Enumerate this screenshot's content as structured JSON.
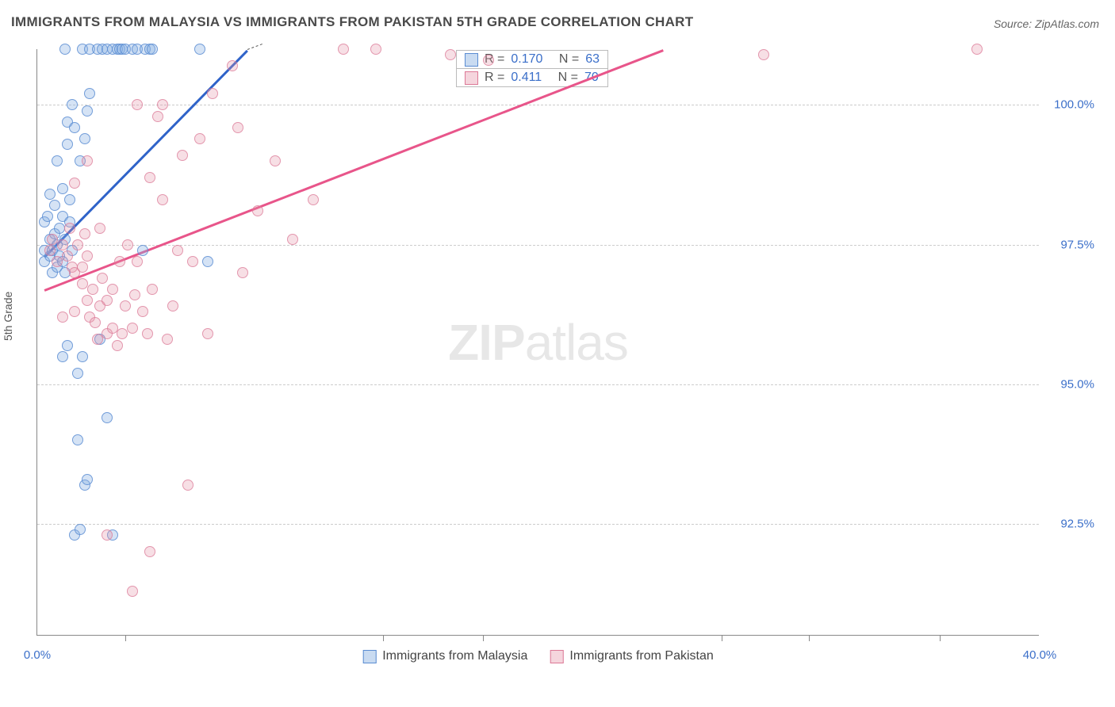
{
  "title": "IMMIGRANTS FROM MALAYSIA VS IMMIGRANTS FROM PAKISTAN 5TH GRADE CORRELATION CHART",
  "source": "Source: ZipAtlas.com",
  "watermark_bold": "ZIP",
  "watermark_rest": "atlas",
  "ylabel": "5th Grade",
  "chart": {
    "type": "scatter",
    "xlim": [
      0,
      40
    ],
    "ylim": [
      90.5,
      101.0
    ],
    "yticks": [
      {
        "v": 92.5,
        "label": "92.5%"
      },
      {
        "v": 95.0,
        "label": "95.0%"
      },
      {
        "v": 97.5,
        "label": "97.5%"
      },
      {
        "v": 100.0,
        "label": "100.0%"
      }
    ],
    "xticks_major": [
      0,
      40
    ],
    "xticks_labels": [
      {
        "v": 0,
        "label": "0.0%"
      },
      {
        "v": 40,
        "label": "40.0%"
      }
    ],
    "xticks_minor": [
      3.5,
      13.8,
      17.8,
      27.3,
      30.8,
      36.0
    ],
    "grid_color": "#cccccc",
    "background_color": "#ffffff",
    "axis_color": "#888888",
    "label_fontsize": 14,
    "tick_fontsize": 15,
    "tick_color": "#3b6fc9",
    "marker_radius": 7
  },
  "series": [
    {
      "name": "Immigrants from Malaysia",
      "color_fill": "rgba(135,175,225,0.35)",
      "color_stroke": "#5a8cd2",
      "trend_color": "#2f63c9",
      "R": "0.170",
      "N": "63",
      "trend": {
        "x1": 0.3,
        "y1": 97.3,
        "x2": 8.4,
        "y2": 101.0,
        "ext_x2": 9.0,
        "ext_y2": 101.1
      },
      "points": [
        [
          0.3,
          97.2
        ],
        [
          0.3,
          97.4
        ],
        [
          0.3,
          97.9
        ],
        [
          0.4,
          98.0
        ],
        [
          0.5,
          97.3
        ],
        [
          0.5,
          97.6
        ],
        [
          0.5,
          98.4
        ],
        [
          0.6,
          97.0
        ],
        [
          0.6,
          97.4
        ],
        [
          0.7,
          97.7
        ],
        [
          0.7,
          98.2
        ],
        [
          0.8,
          97.1
        ],
        [
          0.8,
          97.5
        ],
        [
          0.8,
          99.0
        ],
        [
          0.9,
          97.3
        ],
        [
          0.9,
          97.8
        ],
        [
          1.0,
          97.2
        ],
        [
          1.0,
          98.0
        ],
        [
          1.0,
          98.5
        ],
        [
          1.1,
          97.0
        ],
        [
          1.1,
          97.6
        ],
        [
          1.1,
          101.0
        ],
        [
          1.2,
          99.3
        ],
        [
          1.2,
          99.7
        ],
        [
          1.3,
          97.9
        ],
        [
          1.3,
          98.3
        ],
        [
          1.4,
          97.4
        ],
        [
          1.4,
          100.0
        ],
        [
          1.5,
          92.3
        ],
        [
          1.5,
          99.6
        ],
        [
          1.6,
          94.0
        ],
        [
          1.6,
          95.2
        ],
        [
          1.7,
          92.4
        ],
        [
          1.7,
          99.0
        ],
        [
          1.8,
          101.0
        ],
        [
          1.8,
          95.5
        ],
        [
          1.9,
          99.4
        ],
        [
          1.9,
          93.2
        ],
        [
          2.0,
          93.3
        ],
        [
          2.0,
          99.9
        ],
        [
          2.1,
          100.2
        ],
        [
          2.1,
          101.0
        ],
        [
          2.4,
          101.0
        ],
        [
          2.5,
          95.8
        ],
        [
          2.6,
          101.0
        ],
        [
          2.8,
          101.0
        ],
        [
          2.8,
          94.4
        ],
        [
          3.0,
          101.0
        ],
        [
          3.0,
          92.3
        ],
        [
          3.2,
          101.0
        ],
        [
          3.3,
          101.0
        ],
        [
          3.4,
          101.0
        ],
        [
          3.5,
          101.0
        ],
        [
          3.8,
          101.0
        ],
        [
          4.0,
          101.0
        ],
        [
          4.2,
          97.4
        ],
        [
          4.3,
          101.0
        ],
        [
          4.5,
          101.0
        ],
        [
          4.6,
          101.0
        ],
        [
          6.5,
          101.0
        ],
        [
          6.8,
          97.2
        ],
        [
          1.0,
          95.5
        ],
        [
          1.2,
          95.7
        ]
      ]
    },
    {
      "name": "Immigrants from Pakistan",
      "color_fill": "rgba(230,150,170,0.30)",
      "color_stroke": "#dc7896",
      "trend_color": "#e8558a",
      "R": "0.411",
      "N": "70",
      "trend": {
        "x1": 0.3,
        "y1": 96.7,
        "x2": 25.0,
        "y2": 101.0
      },
      "points": [
        [
          0.5,
          97.4
        ],
        [
          0.6,
          97.6
        ],
        [
          0.8,
          97.2
        ],
        [
          1.0,
          97.5
        ],
        [
          1.0,
          96.2
        ],
        [
          1.2,
          97.3
        ],
        [
          1.3,
          97.8
        ],
        [
          1.4,
          97.1
        ],
        [
          1.5,
          96.3
        ],
        [
          1.5,
          97.0
        ],
        [
          1.6,
          97.5
        ],
        [
          1.8,
          96.8
        ],
        [
          1.8,
          97.1
        ],
        [
          1.9,
          97.7
        ],
        [
          2.0,
          96.5
        ],
        [
          2.0,
          97.3
        ],
        [
          2.1,
          96.2
        ],
        [
          2.2,
          96.7
        ],
        [
          2.3,
          96.1
        ],
        [
          2.4,
          95.8
        ],
        [
          2.5,
          96.4
        ],
        [
          2.5,
          97.8
        ],
        [
          2.6,
          96.9
        ],
        [
          2.8,
          95.9
        ],
        [
          2.8,
          96.5
        ],
        [
          3.0,
          96.0
        ],
        [
          3.0,
          96.7
        ],
        [
          3.2,
          95.7
        ],
        [
          3.3,
          97.2
        ],
        [
          3.4,
          95.9
        ],
        [
          3.5,
          96.4
        ],
        [
          3.6,
          97.5
        ],
        [
          3.8,
          96.0
        ],
        [
          3.9,
          96.6
        ],
        [
          4.0,
          97.2
        ],
        [
          4.2,
          96.3
        ],
        [
          4.4,
          95.9
        ],
        [
          4.5,
          98.7
        ],
        [
          4.6,
          96.7
        ],
        [
          4.8,
          99.8
        ],
        [
          5.0,
          98.3
        ],
        [
          5.0,
          100.0
        ],
        [
          5.2,
          95.8
        ],
        [
          5.4,
          96.4
        ],
        [
          5.6,
          97.4
        ],
        [
          5.8,
          99.1
        ],
        [
          6.0,
          93.2
        ],
        [
          6.2,
          97.2
        ],
        [
          6.5,
          99.4
        ],
        [
          6.8,
          95.9
        ],
        [
          7.0,
          100.2
        ],
        [
          7.8,
          100.7
        ],
        [
          8.0,
          99.6
        ],
        [
          8.2,
          97.0
        ],
        [
          8.8,
          98.1
        ],
        [
          10.2,
          97.6
        ],
        [
          11.0,
          98.3
        ],
        [
          12.2,
          101.0
        ],
        [
          13.5,
          101.0
        ],
        [
          16.5,
          100.9
        ],
        [
          18.0,
          100.8
        ],
        [
          29.0,
          100.9
        ],
        [
          37.5,
          101.0
        ],
        [
          3.8,
          91.3
        ],
        [
          4.5,
          92.0
        ],
        [
          2.8,
          92.3
        ],
        [
          1.5,
          98.6
        ],
        [
          4.0,
          100.0
        ],
        [
          2.0,
          99.0
        ],
        [
          9.5,
          99.0
        ]
      ]
    }
  ],
  "legend_stats_labels": {
    "R": "R =",
    "N": "N ="
  },
  "bottom_legend": [
    {
      "series": 0,
      "label": "Immigrants from Malaysia"
    },
    {
      "series": 1,
      "label": "Immigrants from Pakistan"
    }
  ]
}
